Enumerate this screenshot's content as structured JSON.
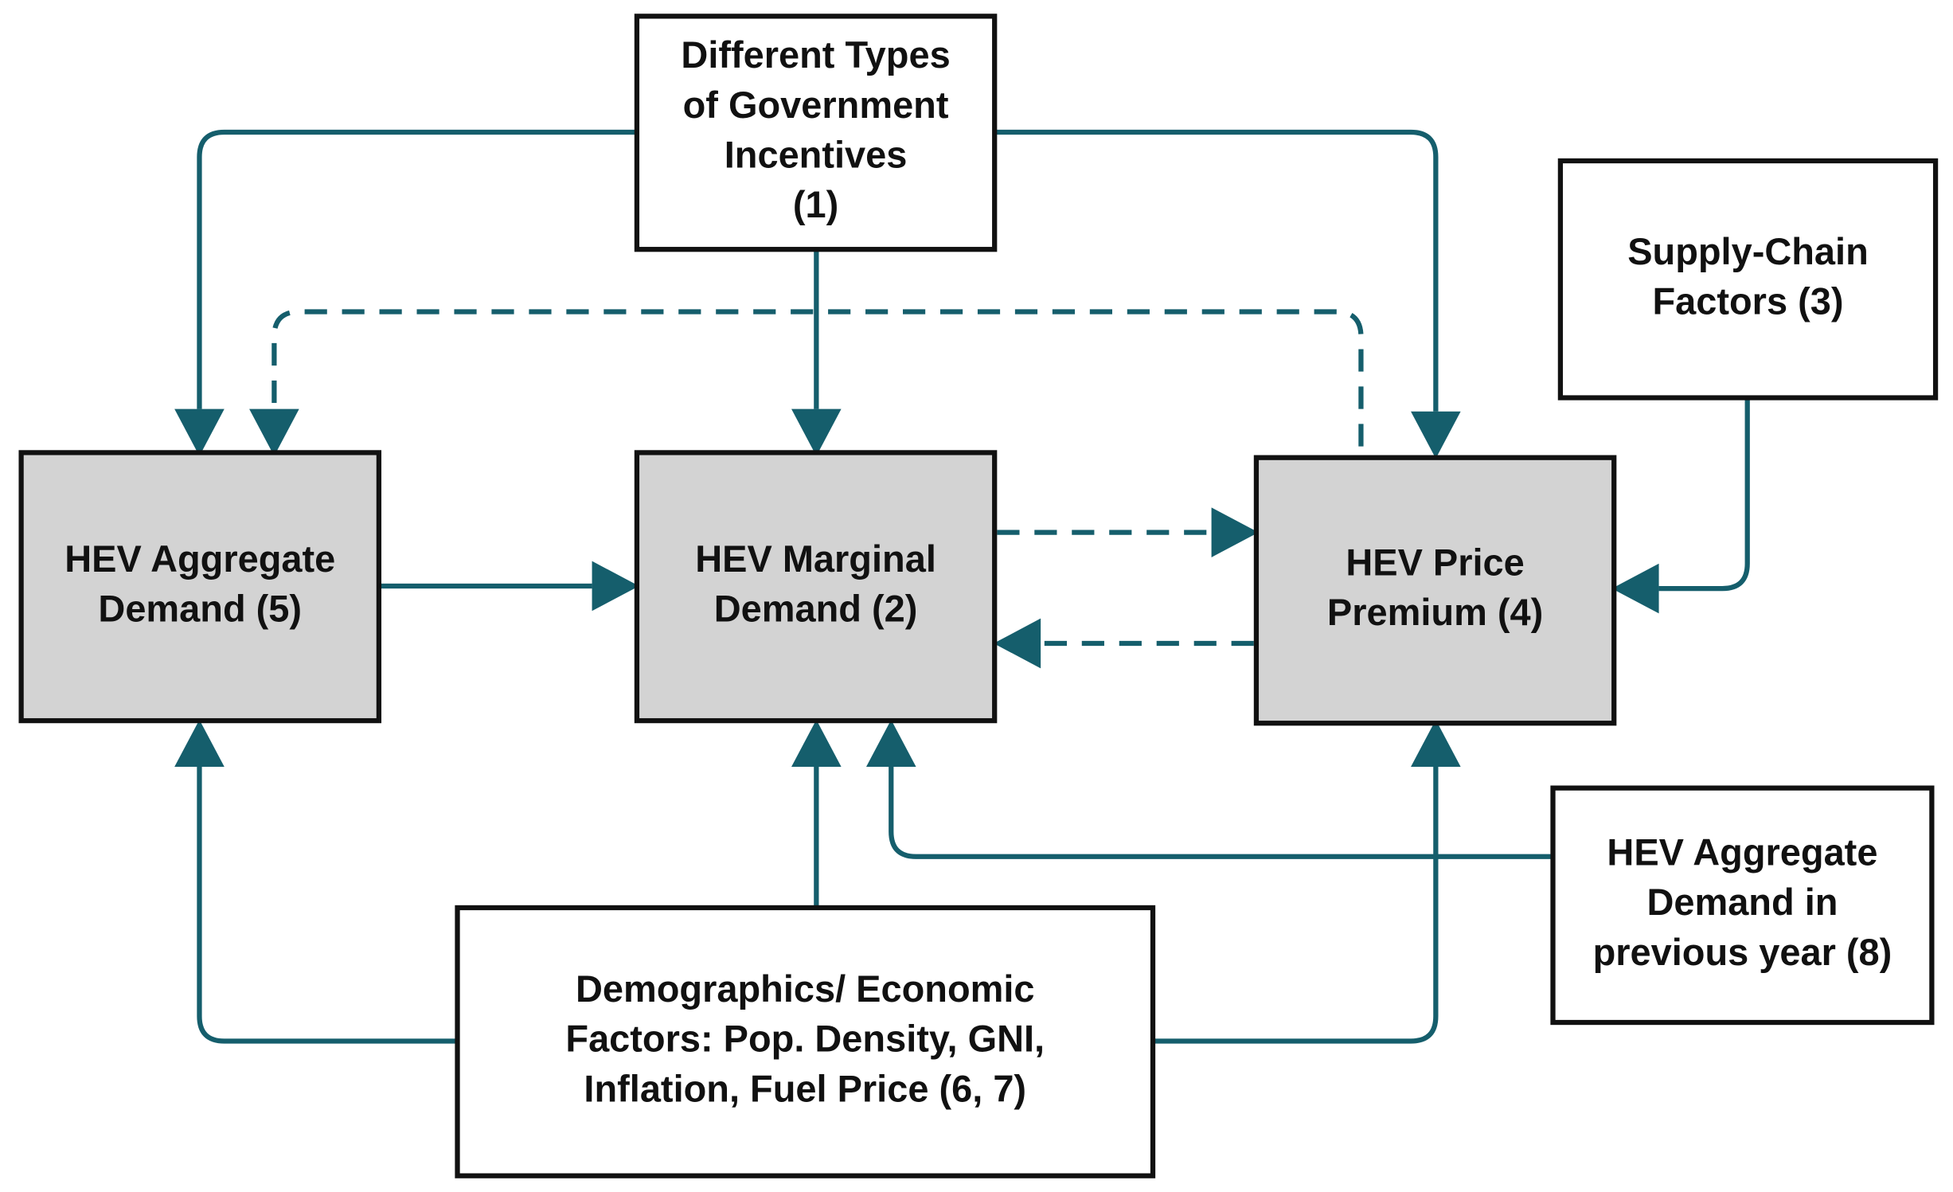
{
  "nodes": [
    {
      "lines": [
        "Different Types",
        "of Government",
        "Incentives",
        "(1)"
      ]
    },
    {
      "lines": [
        "HEV Marginal",
        "Demand (2)"
      ]
    },
    {
      "lines": [
        "Supply-Chain",
        "Factors (3)"
      ]
    },
    {
      "lines": [
        "HEV Price",
        "Premium (4)"
      ]
    },
    {
      "lines": [
        "HEV Aggregate",
        "Demand (5)"
      ]
    },
    {
      "lines": [
        "Demographics/ Economic",
        "Factors: Pop. Density, GNI,",
        "Inflation, Fuel Price (6, 7)"
      ]
    },
    {
      "lines": [
        "HEV Aggregate",
        "Demand in",
        "previous year (8)"
      ]
    }
  ]
}
